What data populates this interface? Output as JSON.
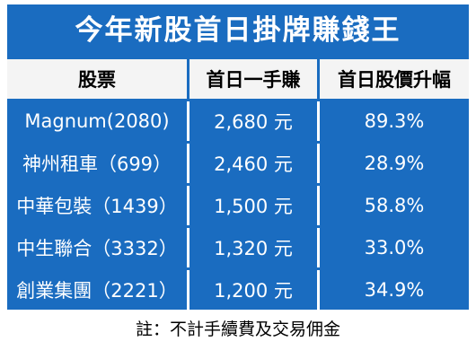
{
  "header": {
    "title": "今年新股首日掛牌賺錢王"
  },
  "table": {
    "columns": [
      "股票",
      "首日一手賺",
      "首日股價升幅"
    ],
    "rows": [
      [
        "Magnum(2080)",
        "2,680 元",
        "89.3%"
      ],
      [
        "神州租車（699）",
        "2,460 元",
        "28.9%"
      ],
      [
        "中華包裝（1439）",
        "1,500 元",
        "58.8%"
      ],
      [
        "中生聯合（3332）",
        "1,320 元",
        "33.0%"
      ],
      [
        "創業集團（2221）",
        "1,200 元",
        "34.9%"
      ]
    ]
  },
  "footnote": "註：不計手續費及交易佣金"
}
